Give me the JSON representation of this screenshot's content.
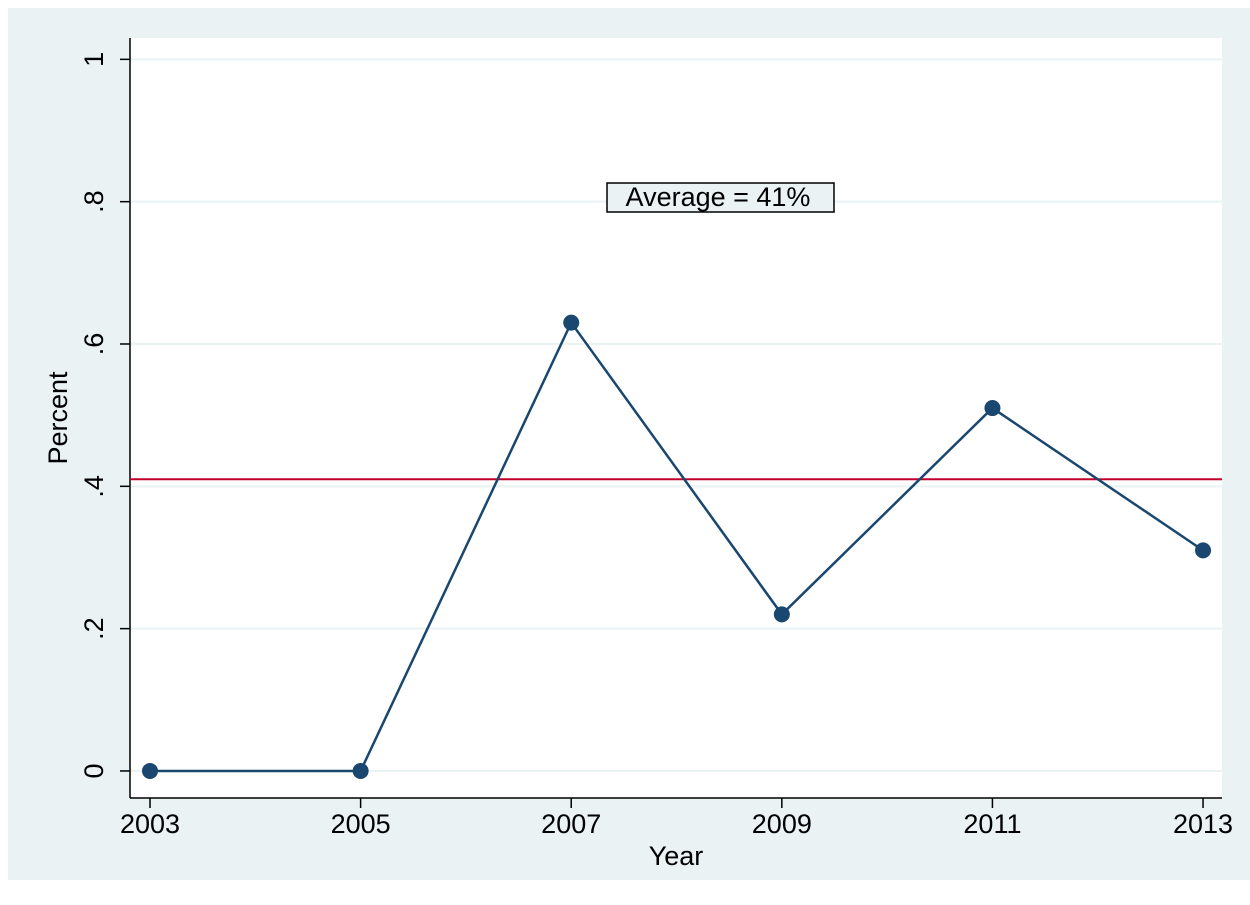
{
  "chart_data": {
    "type": "line",
    "x_label": "Year",
    "y_label": "Percent",
    "x": [
      2003,
      2005,
      2007,
      2009,
      2011,
      2013
    ],
    "series": [
      {
        "color": "#1a476f",
        "values": [
          0,
          0,
          0.63,
          0.22,
          0.51,
          0.31
        ]
      }
    ],
    "xlim": [
      2002.81,
      2013.18
    ],
    "xticks": [
      2003,
      2005,
      2007,
      2009,
      2011,
      2013
    ],
    "ylim": [
      -0.038,
      1.03
    ],
    "yticks": [
      0,
      {
        "value": 0.2,
        "label": ".2"
      },
      {
        "value": 0.4,
        "label": ".4"
      },
      {
        "value": 0.6,
        "label": ".6"
      },
      {
        "value": 0.8,
        "label": ".8"
      },
      1
    ],
    "grid": true,
    "grid_color": "#eaf2f3",
    "reference_line": {
      "value": 0.41,
      "color": "#c0002a",
      "label": "Average = 41%"
    }
  }
}
